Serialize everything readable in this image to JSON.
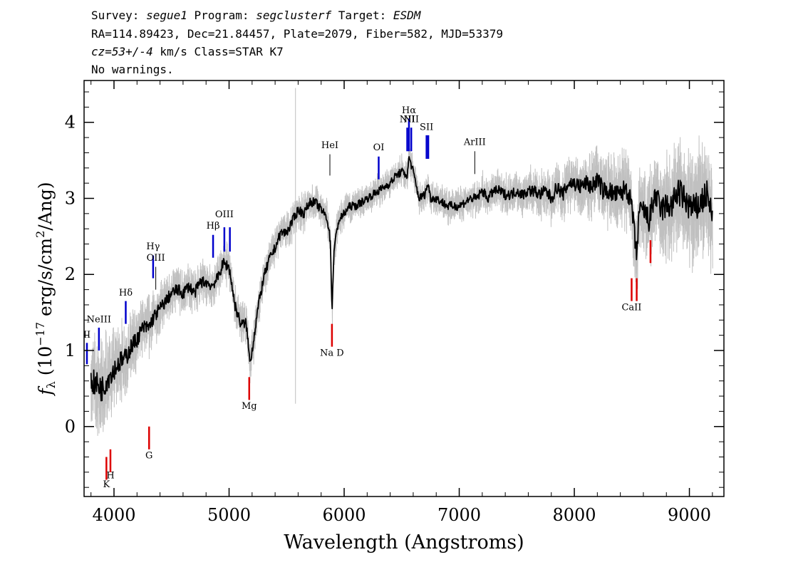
{
  "header": {
    "survey_label": "Survey: ",
    "survey": "segue1",
    "program_label": " Program: ",
    "program": "segclusterf",
    "target_label": " Target: ",
    "target": "ESDM",
    "line2": "RA=114.89423, Dec=21.84457, Plate=2079, Fiber=582, MJD=53379",
    "cz": "cz=53+/-4",
    "cz_rest": " km/s Class=STAR K7",
    "line4": "No warnings."
  },
  "chart_data": {
    "type": "line",
    "xlabel": "Wavelength (Angstroms)",
    "ylabel_parts": [
      "f",
      "λ",
      " (10",
      "−17",
      " erg/s/cm",
      "2",
      "/Ang)"
    ],
    "xlim": [
      3740,
      9300
    ],
    "ylim": [
      -0.92,
      4.55
    ],
    "x_ticks": [
      4000,
      5000,
      6000,
      7000,
      8000,
      9000
    ],
    "y_ticks": [
      0,
      1,
      2,
      3,
      4
    ],
    "grid": false,
    "colors": {
      "flux": "#000000",
      "error": "#c0c0c0",
      "emission": "#0000cc",
      "absorption": "#dd0000",
      "ticks": "#000000"
    },
    "series": [
      {
        "name": "flux",
        "x": [
          3800,
          3850,
          3900,
          3950,
          4000,
          4050,
          4100,
          4150,
          4200,
          4250,
          4300,
          4350,
          4400,
          4450,
          4500,
          4550,
          4600,
          4650,
          4700,
          4750,
          4800,
          4850,
          4900,
          4950,
          5000,
          5050,
          5100,
          5150,
          5180,
          5200,
          5250,
          5300,
          5350,
          5400,
          5450,
          5500,
          5550,
          5600,
          5650,
          5700,
          5750,
          5800,
          5850,
          5880,
          5895,
          5910,
          5950,
          6000,
          6050,
          6100,
          6150,
          6200,
          6250,
          6300,
          6350,
          6400,
          6450,
          6500,
          6550,
          6563,
          6600,
          6650,
          6700,
          6730,
          6750,
          6800,
          6850,
          6900,
          6950,
          7000,
          7050,
          7100,
          7150,
          7200,
          7250,
          7300,
          7350,
          7400,
          7450,
          7500,
          7550,
          7600,
          7650,
          7700,
          7750,
          7800,
          7850,
          7900,
          7950,
          8000,
          8050,
          8100,
          8150,
          8200,
          8250,
          8300,
          8350,
          8400,
          8450,
          8500,
          8542,
          8560,
          8600,
          8650,
          8700,
          8750,
          8800,
          8850,
          8900,
          8950,
          9000,
          9050,
          9100,
          9150,
          9200
        ],
        "y": [
          0.6,
          0.55,
          0.5,
          0.65,
          0.75,
          0.85,
          0.9,
          1.05,
          1.15,
          1.3,
          1.3,
          1.45,
          1.55,
          1.65,
          1.75,
          1.8,
          1.75,
          1.85,
          1.75,
          1.9,
          1.9,
          1.85,
          1.95,
          2.15,
          2.1,
          1.6,
          1.35,
          1.35,
          0.85,
          1.0,
          1.55,
          1.95,
          2.2,
          2.35,
          2.55,
          2.55,
          2.7,
          2.85,
          2.8,
          2.95,
          2.95,
          2.85,
          2.75,
          2.45,
          1.5,
          2.3,
          2.7,
          2.8,
          2.9,
          2.9,
          2.95,
          3.0,
          3.05,
          3.1,
          3.15,
          3.2,
          3.3,
          3.35,
          3.3,
          3.55,
          3.35,
          3.0,
          3.05,
          3.2,
          3.0,
          3.0,
          2.95,
          2.9,
          2.9,
          2.9,
          2.95,
          3.0,
          3.0,
          3.1,
          3.0,
          3.1,
          3.1,
          3.05,
          3.05,
          3.1,
          3.05,
          3.1,
          3.1,
          3.05,
          3.1,
          3.0,
          3.15,
          3.05,
          3.2,
          3.2,
          3.15,
          3.2,
          3.15,
          3.25,
          3.1,
          3.1,
          3.05,
          3.05,
          3.15,
          2.9,
          2.2,
          2.8,
          2.85,
          2.7,
          3.05,
          2.85,
          2.9,
          2.9,
          3.1,
          3.0,
          2.9,
          2.85,
          2.95,
          3.05,
          2.75
        ],
        "error_halfwidth": [
          0.35,
          0.4,
          0.4,
          0.35,
          0.3,
          0.3,
          0.28,
          0.26,
          0.24,
          0.22,
          0.22,
          0.2,
          0.2,
          0.18,
          0.18,
          0.18,
          0.18,
          0.17,
          0.17,
          0.17,
          0.16,
          0.16,
          0.16,
          0.16,
          0.16,
          0.16,
          0.16,
          0.16,
          0.16,
          0.16,
          0.15,
          0.15,
          0.15,
          0.14,
          0.14,
          0.14,
          0.14,
          0.14,
          0.14,
          0.13,
          0.13,
          0.13,
          0.13,
          0.13,
          0.13,
          0.13,
          0.13,
          0.12,
          0.12,
          0.12,
          0.12,
          0.12,
          0.12,
          0.12,
          0.12,
          0.12,
          0.12,
          0.12,
          0.12,
          0.12,
          0.12,
          0.12,
          0.12,
          0.12,
          0.12,
          0.12,
          0.13,
          0.13,
          0.13,
          0.13,
          0.13,
          0.13,
          0.14,
          0.14,
          0.14,
          0.14,
          0.15,
          0.15,
          0.15,
          0.16,
          0.16,
          0.17,
          0.17,
          0.18,
          0.18,
          0.2,
          0.2,
          0.2,
          0.22,
          0.22,
          0.24,
          0.24,
          0.25,
          0.26,
          0.27,
          0.28,
          0.28,
          0.3,
          0.3,
          0.3,
          0.32,
          0.32,
          0.35,
          0.35,
          0.38,
          0.38,
          0.4,
          0.4,
          0.42,
          0.42,
          0.45,
          0.45,
          0.45,
          0.45,
          0.48
        ]
      }
    ],
    "line_markers": [
      {
        "label": "II",
        "type": "emission",
        "x": 3727,
        "y1": 0.82,
        "y2": 1.1,
        "label_y": 1.17
      },
      {
        "label": "NeIII",
        "type": "emission",
        "x": 3869,
        "y1": 1.0,
        "y2": 1.3,
        "label_y": 1.37
      },
      {
        "label": "Hδ",
        "type": "emission",
        "x": 4102,
        "y1": 1.35,
        "y2": 1.65,
        "label_y": 1.72
      },
      {
        "label": "Hγ",
        "type": "emission",
        "x": 4340,
        "y1": 1.95,
        "y2": 2.25,
        "label_y": 2.33
      },
      {
        "label": "OIII",
        "type": "emission-black",
        "x": 4363,
        "y1": 1.8,
        "y2": 2.1,
        "label_y": 2.18
      },
      {
        "label": "Hβ",
        "type": "emission",
        "x": 4861,
        "y1": 2.22,
        "y2": 2.52,
        "label_y": 2.6
      },
      {
        "label": "OIII",
        "type": "emission",
        "x": 4959,
        "y1": 2.3,
        "y2": 2.62,
        "label_y": 2.75
      },
      {
        "label": "",
        "type": "emission",
        "x": 5007,
        "y1": 2.3,
        "y2": 2.62,
        "label_y": 2.75
      },
      {
        "label": "HeI",
        "type": "emission-black",
        "x": 5876,
        "y1": 3.3,
        "y2": 3.58,
        "label_y": 3.66
      },
      {
        "label": "OI",
        "type": "emission",
        "x": 6300,
        "y1": 3.25,
        "y2": 3.55,
        "label_y": 3.63
      },
      {
        "label": "NII",
        "type": "emission",
        "x": 6548,
        "y1": 3.62,
        "y2": 3.93,
        "label_y": 4.0
      },
      {
        "label": "Hα",
        "type": "emission",
        "x": 6563,
        "y1": 3.62,
        "y2": 4.05,
        "label_y": 4.12
      },
      {
        "label": "NII",
        "type": "emission",
        "x": 6583,
        "y1": 3.62,
        "y2": 3.93,
        "label_y": 4.0
      },
      {
        "label": "SII",
        "type": "emission",
        "x": 6716,
        "y1": 3.52,
        "y2": 3.83,
        "label_y": 3.9
      },
      {
        "label": "",
        "type": "emission",
        "x": 6731,
        "y1": 3.52,
        "y2": 3.83,
        "label_y": 3.9
      },
      {
        "label": "ArIII",
        "type": "emission-black",
        "x": 7135,
        "y1": 3.32,
        "y2": 3.62,
        "label_y": 3.7
      },
      {
        "label": "K",
        "type": "absorption",
        "x": 3934,
        "y1": -0.7,
        "y2": -0.4,
        "label_y": -0.8
      },
      {
        "label": "H",
        "type": "absorption",
        "x": 3969,
        "y1": -0.6,
        "y2": -0.3,
        "label_y": -0.68
      },
      {
        "label": "G",
        "type": "absorption",
        "x": 4305,
        "y1": -0.3,
        "y2": 0.0,
        "label_y": -0.42
      },
      {
        "label": "Mg",
        "type": "absorption",
        "x": 5175,
        "y1": 0.35,
        "y2": 0.65,
        "label_y": 0.23
      },
      {
        "label": "Na D",
        "type": "absorption",
        "x": 5894,
        "y1": 1.05,
        "y2": 1.35,
        "label_y": 0.93
      },
      {
        "label": "CaII",
        "type": "absorption",
        "x": 8498,
        "y1": 1.65,
        "y2": 1.95,
        "label_y": 1.53
      },
      {
        "label": "",
        "type": "absorption",
        "x": 8542,
        "y1": 1.65,
        "y2": 1.95,
        "label_y": 1.53
      },
      {
        "label": "",
        "type": "absorption",
        "x": 8662,
        "y1": 2.15,
        "y2": 2.45,
        "label_y": 2.03
      }
    ],
    "spike_markers": [
      {
        "x": 5577,
        "y1": 0.3,
        "y2": 4.45
      }
    ]
  }
}
